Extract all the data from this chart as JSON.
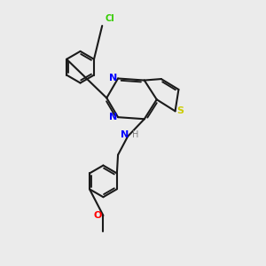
{
  "bg_color": "#ebebeb",
  "bond_color": "#1a1a1a",
  "N_color": "#0000ff",
  "S_color": "#cccc00",
  "Cl_color": "#33cc00",
  "O_color": "#ff0000",
  "lw": 1.5,
  "xlim": [
    0,
    10
  ],
  "ylim": [
    0,
    10
  ]
}
